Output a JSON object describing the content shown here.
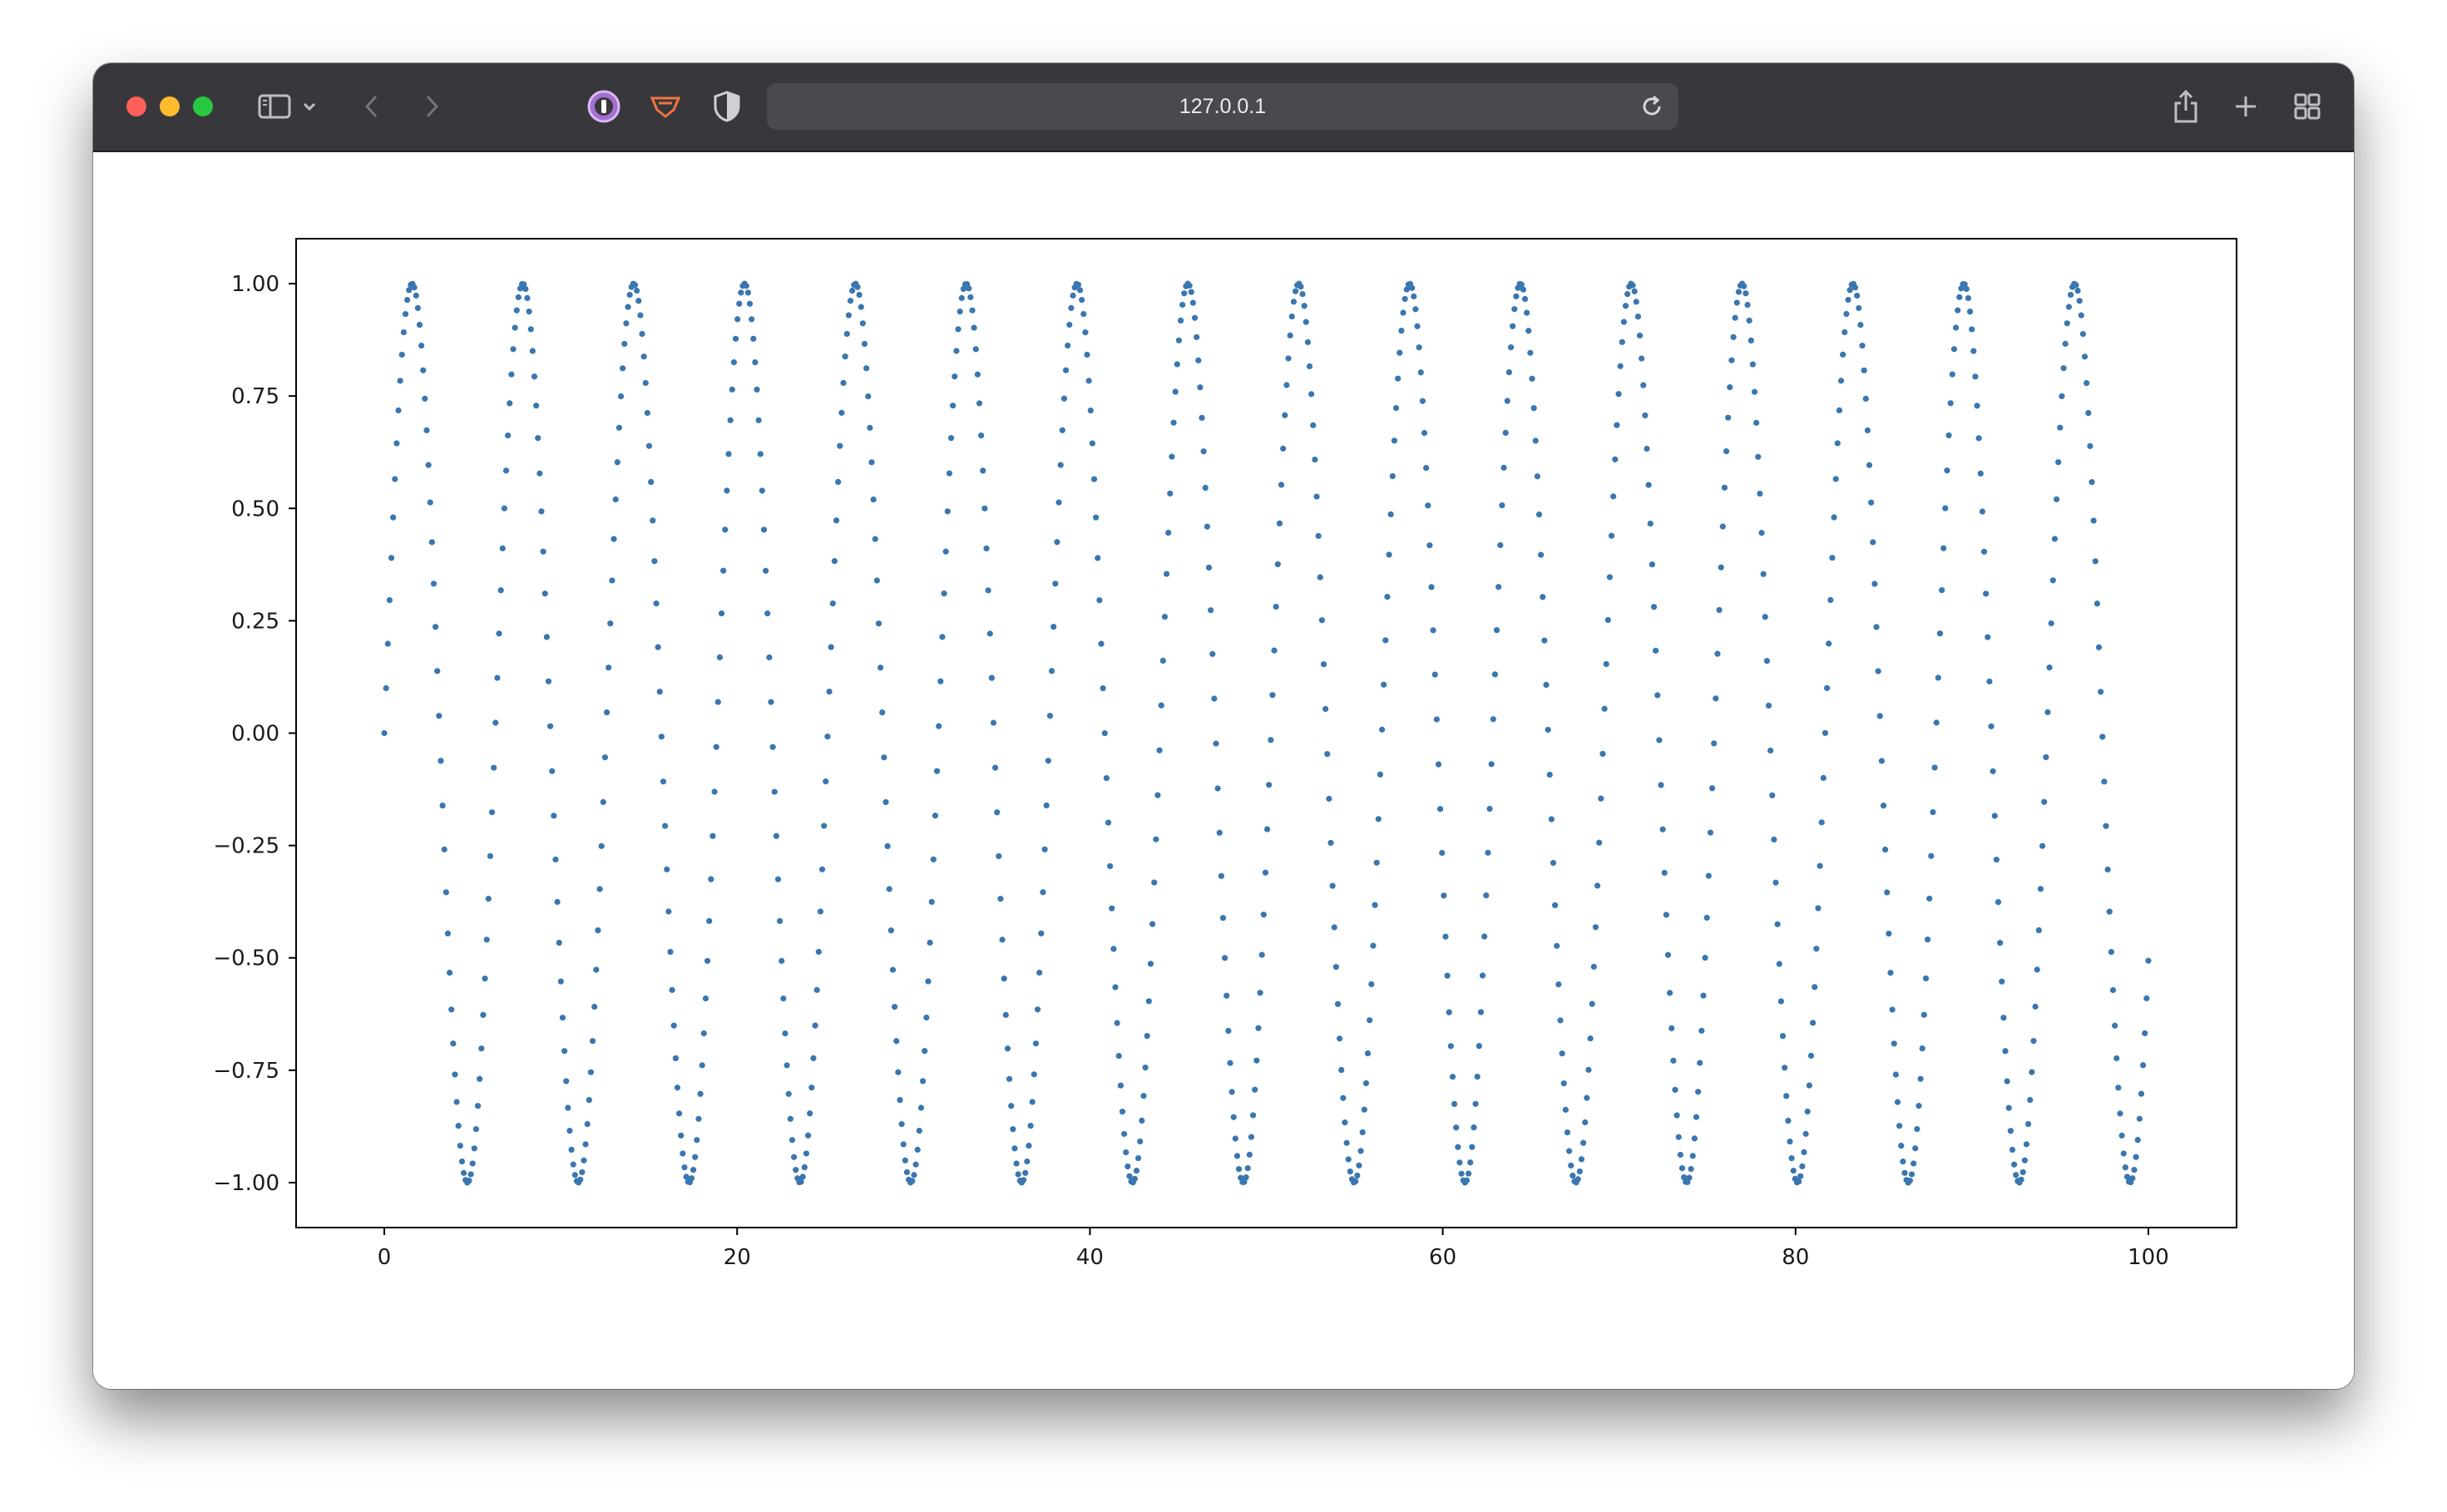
{
  "browser": {
    "url": "127.0.0.1",
    "icons": [
      "sidebar-icon",
      "chevron-down-icon",
      "back-icon",
      "forward-icon",
      "onepassword-icon",
      "extension-icon",
      "shield-icon",
      "reload-icon",
      "share-icon",
      "new-tab-icon",
      "tab-overview-icon"
    ]
  },
  "colors": {
    "marker": "#3a76af",
    "toolbar": "#38373c"
  },
  "chart_data": {
    "type": "scatter",
    "x_range": [
      0,
      100
    ],
    "samples": 1000,
    "function": "sin(x)",
    "xlim": [
      -5,
      105
    ],
    "ylim": [
      -1.1,
      1.1
    ],
    "xticks": [
      0,
      20,
      40,
      60,
      80,
      100
    ],
    "xtick_labels": [
      "0",
      "20",
      "40",
      "60",
      "80",
      "100"
    ],
    "yticks": [
      1.0,
      0.75,
      0.5,
      0.25,
      0.0,
      -0.25,
      -0.5,
      -0.75,
      -1.0
    ],
    "ytick_labels": [
      "1.00",
      "0.75",
      "0.50",
      "0.25",
      "0.00",
      "−0.25",
      "−0.50",
      "−0.75",
      "−1.00"
    ],
    "title": "",
    "xlabel": "",
    "ylabel": "",
    "grid": false,
    "legend": false
  }
}
